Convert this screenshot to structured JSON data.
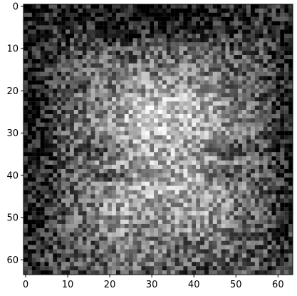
{
  "chart_data": {
    "type": "heatmap",
    "colormap": "gray",
    "image_shape": [
      64,
      64
    ],
    "xlim": [
      -0.5,
      63.5
    ],
    "ylim": [
      63.5,
      -0.5
    ],
    "y_axis_inverted": true,
    "grid": false,
    "x_ticks": [
      0,
      10,
      20,
      30,
      40,
      50,
      60
    ],
    "y_ticks": [
      0,
      10,
      20,
      30,
      40,
      50,
      60
    ],
    "x_tick_labels": [
      "0",
      "10",
      "20",
      "30",
      "40",
      "50",
      "60"
    ],
    "y_tick_labels": [
      "0",
      "10",
      "20",
      "30",
      "40",
      "50",
      "60"
    ],
    "title": "",
    "xlabel": "",
    "ylabel": "",
    "description_of_content": "noisy grayscale portrait of a face"
  }
}
